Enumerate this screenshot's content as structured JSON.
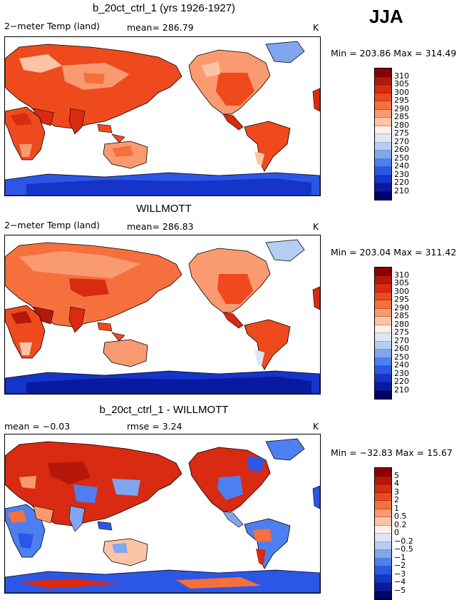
{
  "season": "JJA",
  "panels": [
    {
      "title": "b_20ct_ctrl_1 (yrs 1926-1927)",
      "left_label": "2−meter Temp (land)",
      "stat_label": "mean= 286.79",
      "units": "K",
      "minmax": "Min = 203.86  Max = 314.49",
      "colorbar": {
        "labels": [
          "310",
          "305",
          "300",
          "295",
          "290",
          "285",
          "280",
          "275",
          "270",
          "260",
          "250",
          "240",
          "230",
          "220",
          "210"
        ],
        "colors": [
          "#8b0000",
          "#b5180b",
          "#d92a12",
          "#ee4a1d",
          "#f5703c",
          "#f99a70",
          "#fcc4a6",
          "#fef0e6",
          "#dbe7f7",
          "#b4cdf2",
          "#7fa6ee",
          "#4e7ff0",
          "#2b56e6",
          "#1534c8",
          "#0a1aa0",
          "#00006e"
        ]
      }
    },
    {
      "title": "WILLMOTT",
      "left_label": "2−meter Temp (land)",
      "stat_label": "mean= 286.83",
      "units": "K",
      "minmax": "Min = 203.04  Max = 311.42",
      "colorbar": {
        "labels": [
          "310",
          "305",
          "300",
          "295",
          "290",
          "285",
          "280",
          "275",
          "270",
          "260",
          "250",
          "240",
          "230",
          "220",
          "210"
        ],
        "colors": [
          "#8b0000",
          "#b5180b",
          "#d92a12",
          "#ee4a1d",
          "#f5703c",
          "#f99a70",
          "#fcc4a6",
          "#fef0e6",
          "#dbe7f7",
          "#b4cdf2",
          "#7fa6ee",
          "#4e7ff0",
          "#2b56e6",
          "#1534c8",
          "#0a1aa0",
          "#00006e"
        ]
      }
    },
    {
      "title": "b_20ct_ctrl_1 - WILLMOTT",
      "left_label": "mean =   −0.03",
      "stat_label": "rmse =    3.24",
      "units": "K",
      "minmax": "Min = −32.83  Max =  15.67",
      "colorbar": {
        "labels": [
          "5",
          "4",
          "3",
          "2",
          "1",
          "0.5",
          "0.2",
          "0",
          "−0.2",
          "−0.5",
          "−1",
          "−2",
          "−3",
          "−4",
          "−5"
        ],
        "colors": [
          "#8b0000",
          "#b5180b",
          "#d92a12",
          "#ee4a1d",
          "#f5703c",
          "#f99a70",
          "#fcc4a6",
          "#fef0e6",
          "#dbe7f7",
          "#b4cdf2",
          "#7fa6ee",
          "#4e7ff0",
          "#2b56e6",
          "#1534c8",
          "#0a1aa0",
          "#00006e"
        ]
      }
    }
  ]
}
